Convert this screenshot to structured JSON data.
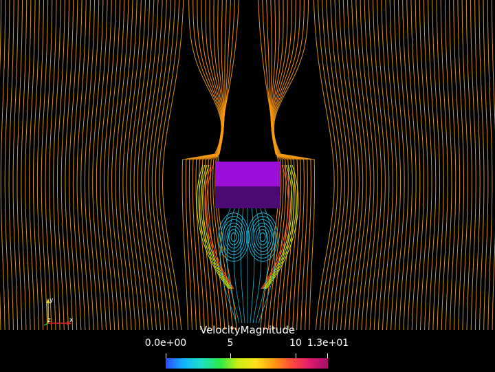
{
  "legend": {
    "title": "VelocityMagnitude",
    "ticks": [
      "0.0e+00",
      "5",
      "10",
      "1.3e+01"
    ],
    "tick_values": [
      0,
      5,
      10,
      13
    ],
    "range": [
      0,
      13
    ],
    "colormap": [
      "#2a4dff",
      "#12b4ff",
      "#1fe0c8",
      "#2bea4a",
      "#c9ee12",
      "#ffe11a",
      "#ff9a12",
      "#ff4a3a",
      "#e01a6e",
      "#a0106a"
    ]
  },
  "axes_widget": {
    "y_label": "y",
    "z_label": "z",
    "x_label": "x"
  },
  "scene": {
    "background": "#000000",
    "obstacle_colors": {
      "top": "#9b10d8",
      "front": "#4c0a74"
    }
  }
}
